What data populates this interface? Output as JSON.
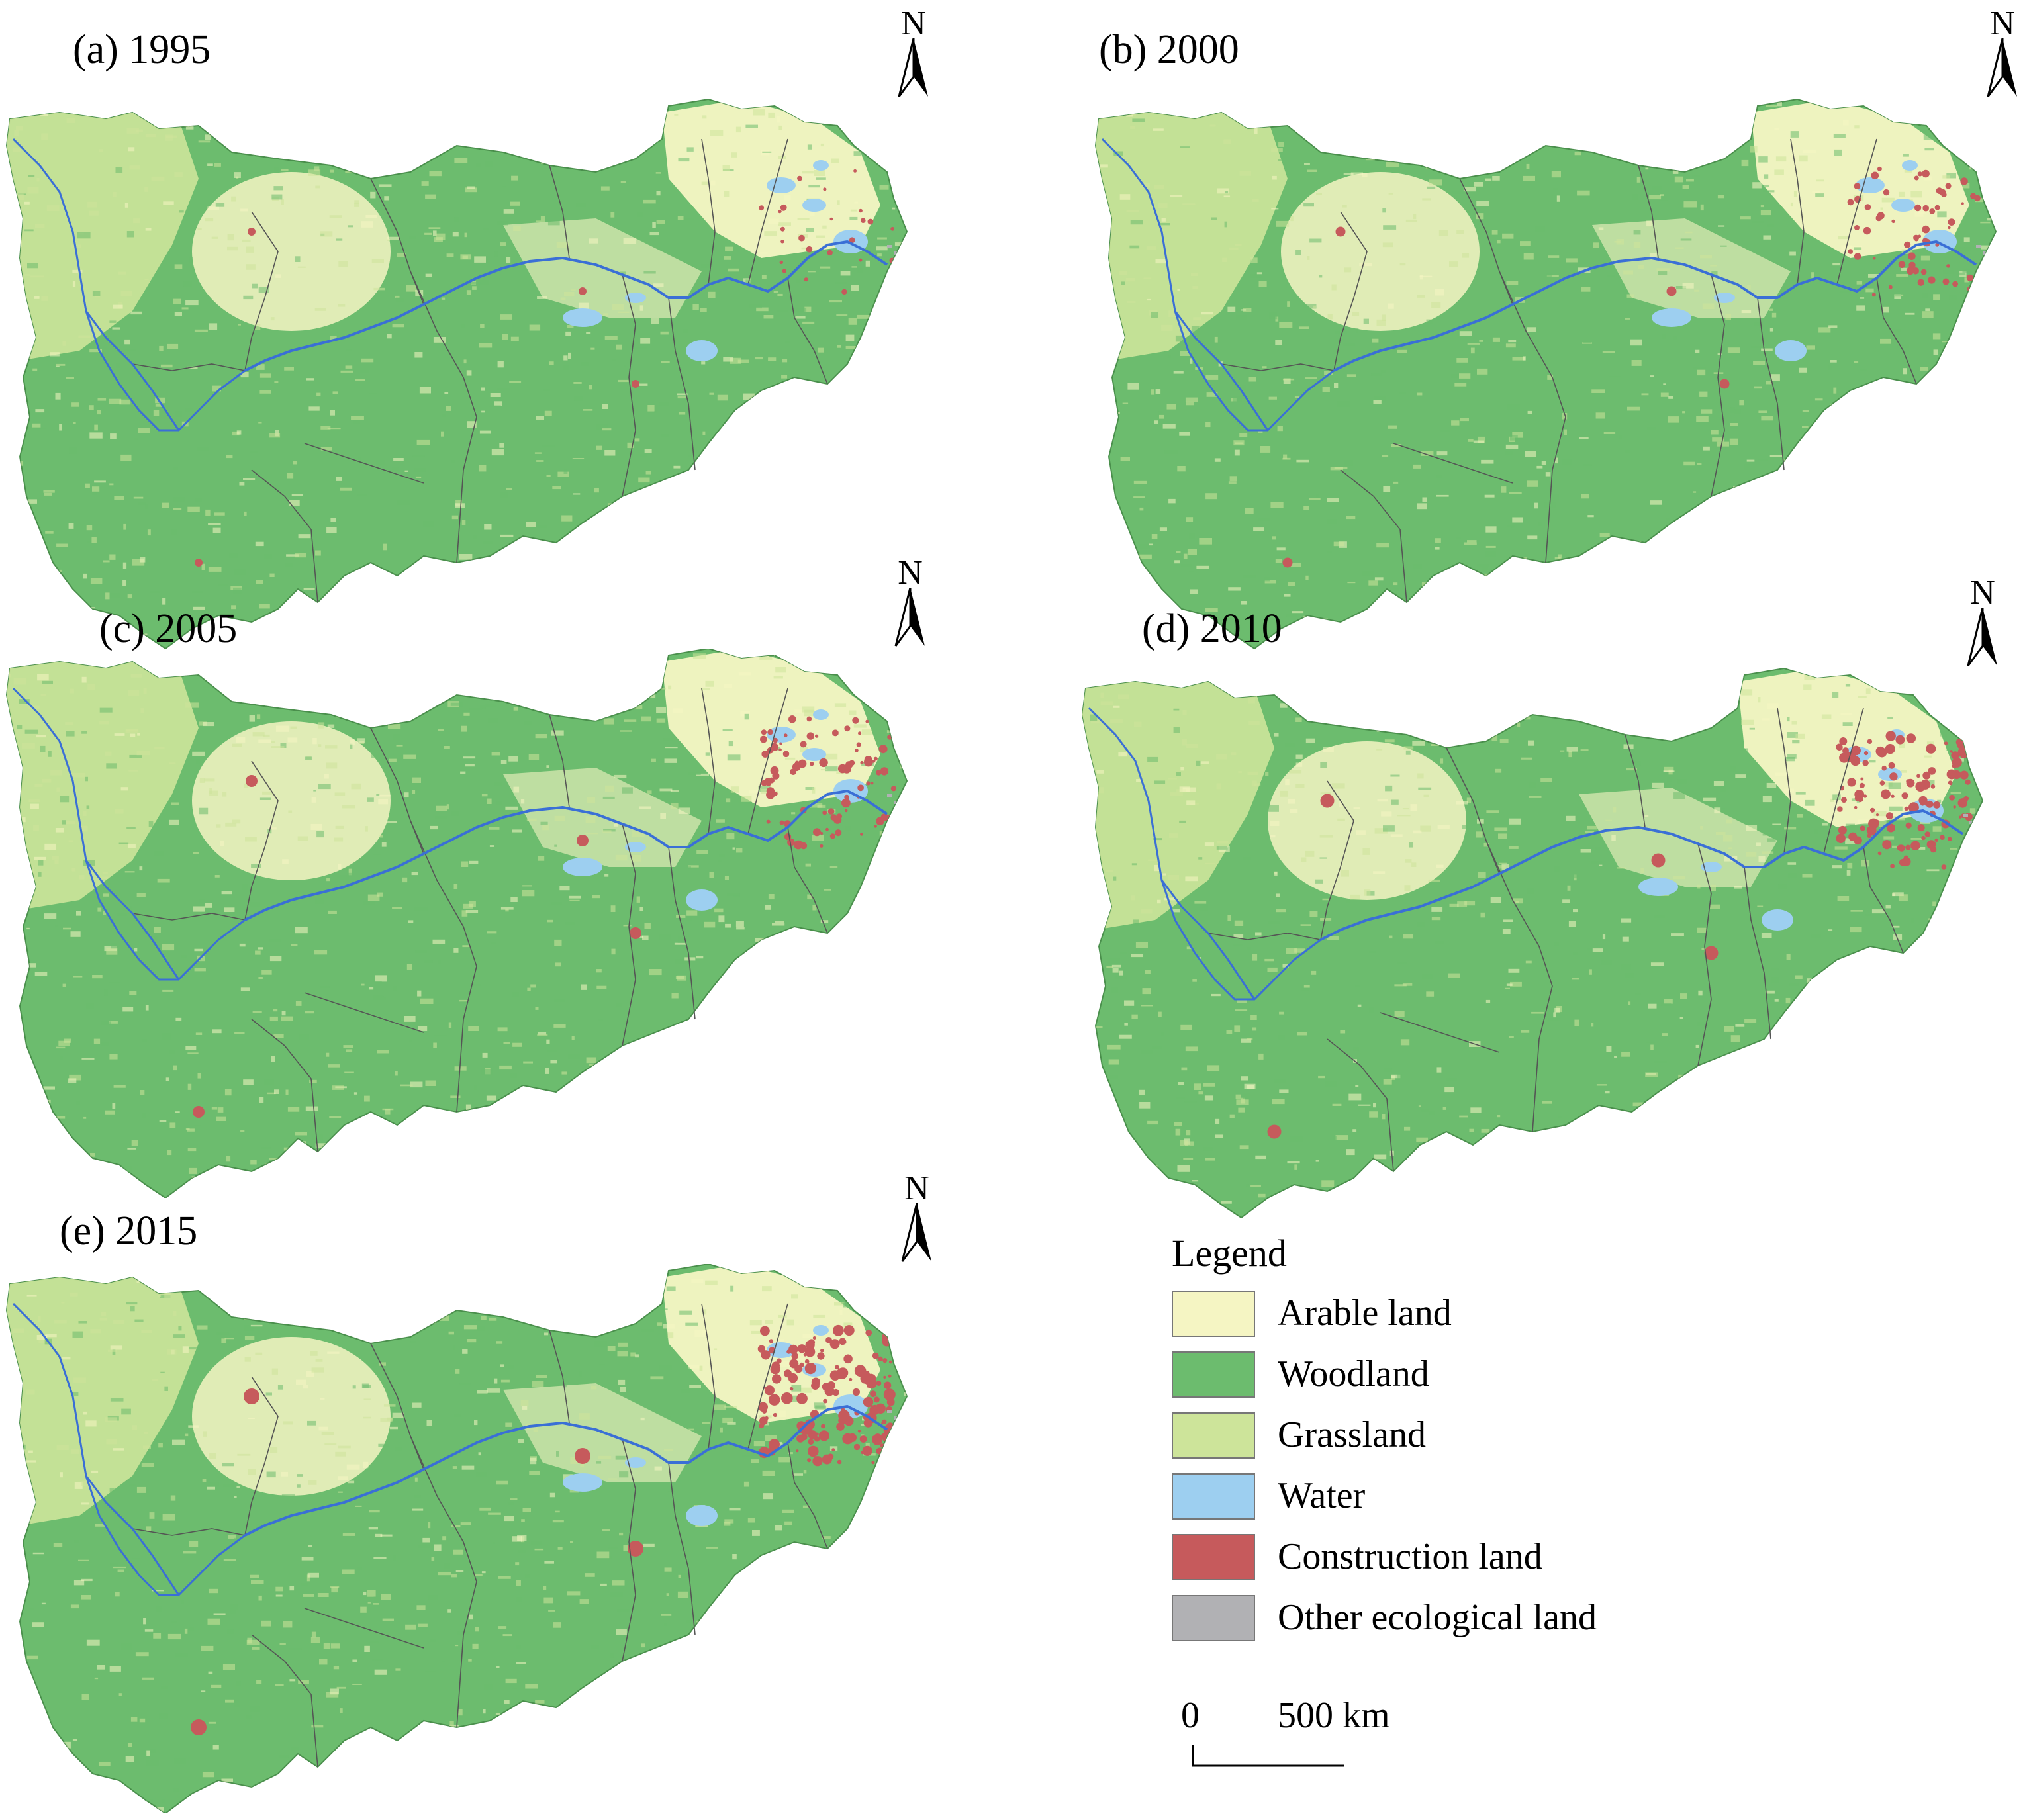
{
  "panels": [
    {
      "id": "a",
      "title": "(a) 1995",
      "north_label": "N"
    },
    {
      "id": "b",
      "title": "(b) 2000",
      "north_label": "N"
    },
    {
      "id": "c",
      "title": "(c) 2005",
      "north_label": "N"
    },
    {
      "id": "d",
      "title": "(d) 2010",
      "north_label": "N"
    },
    {
      "id": "e",
      "title": "(e) 2015",
      "north_label": "N"
    }
  ],
  "legend": {
    "title": "Legend",
    "items": [
      {
        "label": "Arable land",
        "color": "#f5f5c3"
      },
      {
        "label": "Woodland",
        "color": "#6cbc6e"
      },
      {
        "label": "Grassland",
        "color": "#cde49a"
      },
      {
        "label": "Water",
        "color": "#9dcff0"
      },
      {
        "label": "Construction land",
        "color": "#c65a5c"
      },
      {
        "label": "Other ecological land",
        "color": "#b1b1b4"
      }
    ]
  },
  "scale_bar": {
    "start_label": "0",
    "end_label": "500 km"
  },
  "colors": {
    "river": "#3a6fd6",
    "boundary": "#555555",
    "outline": "#4a8f4c"
  }
}
